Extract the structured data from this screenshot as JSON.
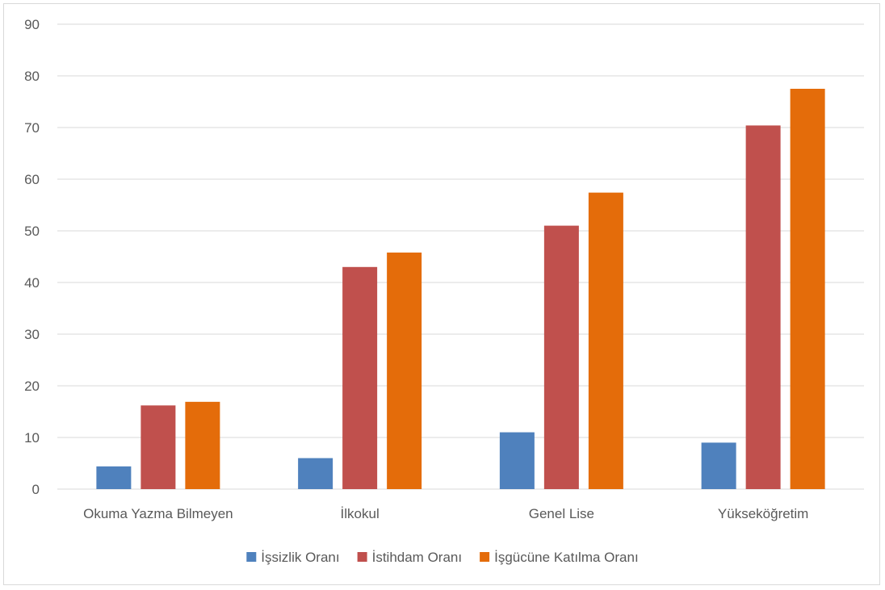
{
  "chart_data": {
    "type": "bar",
    "title": "",
    "xlabel": "",
    "ylabel": "",
    "categories": [
      "Okuma Yazma Bilmeyen",
      "İlkokul",
      "Genel Lise",
      "Yükseköğretim"
    ],
    "series": [
      {
        "name": "İşsizlik Oranı",
        "color": "#4f81bd",
        "values": [
          4.4,
          6.0,
          11.0,
          9.0
        ]
      },
      {
        "name": "İstihdam Oranı",
        "color": "#c0504d",
        "values": [
          16.2,
          43.0,
          51.0,
          70.4
        ]
      },
      {
        "name": "İşgücüne Katılma Oranı",
        "color": "#e46c0a",
        "values": [
          16.9,
          45.8,
          57.4,
          77.5
        ]
      }
    ],
    "ylim": [
      0,
      90
    ],
    "yticks": [
      0,
      10,
      20,
      30,
      40,
      50,
      60,
      70,
      80,
      90
    ],
    "grid": true,
    "legend_position": "bottom"
  }
}
